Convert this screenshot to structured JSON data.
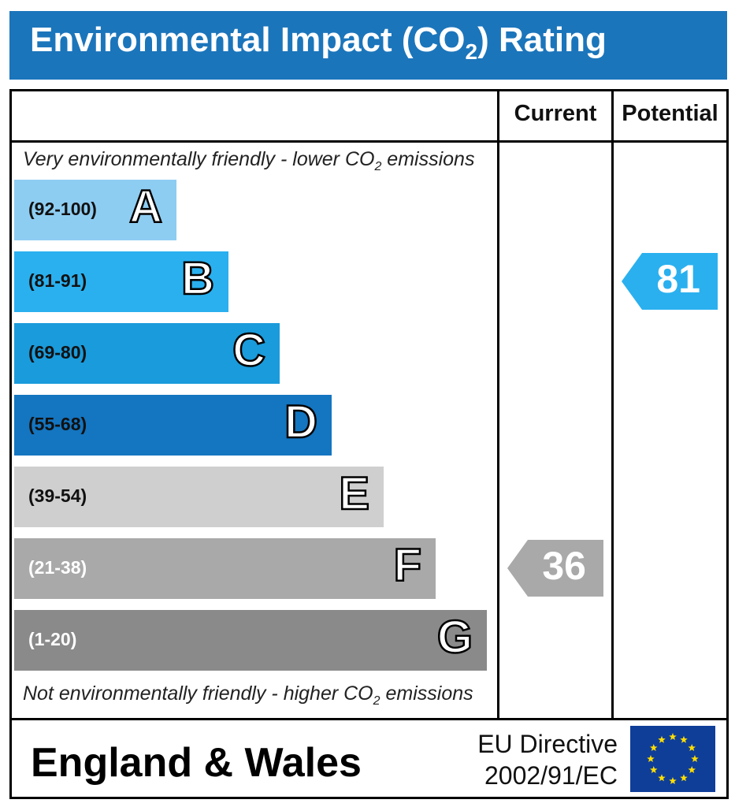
{
  "title": {
    "main": "Environmental Impact (CO",
    "sub": "2",
    "end": ") Rating"
  },
  "columns": {
    "current": "Current",
    "potential": "Potential"
  },
  "captions": {
    "top_main": "Very environmentally friendly - lower CO",
    "top_sub": "2",
    "top_end": " emissions",
    "bottom_main": "Not environmentally friendly - higher CO",
    "bottom_sub": "2",
    "bottom_end": " emissions"
  },
  "bands": [
    {
      "letter": "A",
      "range": "(92-100)",
      "color": "#8ecdf2",
      "text_color": "#111111"
    },
    {
      "letter": "B",
      "range": "(81-91)",
      "color": "#2ab0ef",
      "text_color": "#111111"
    },
    {
      "letter": "C",
      "range": "(69-80)",
      "color": "#1a9bdb",
      "text_color": "#111111"
    },
    {
      "letter": "D",
      "range": "(55-68)",
      "color": "#1475c0",
      "text_color": "#111111"
    },
    {
      "letter": "E",
      "range": "(39-54)",
      "color": "#cfcfcf",
      "text_color": "#111111"
    },
    {
      "letter": "F",
      "range": "(21-38)",
      "color": "#a9a9a9",
      "text_color": "#ffffff"
    },
    {
      "letter": "G",
      "range": "(1-20)",
      "color": "#8a8a8a",
      "text_color": "#ffffff"
    }
  ],
  "ratings": {
    "current": {
      "value": "36",
      "band": "F",
      "color": "#a9a9a9"
    },
    "potential": {
      "value": "81",
      "band": "B",
      "color": "#2ab0ef"
    }
  },
  "footer": {
    "country": "England & Wales",
    "directive_line1": "EU Directive",
    "directive_line2": "2002/91/EC"
  },
  "icons": {
    "eu_flag": "eu-flag-icon"
  }
}
